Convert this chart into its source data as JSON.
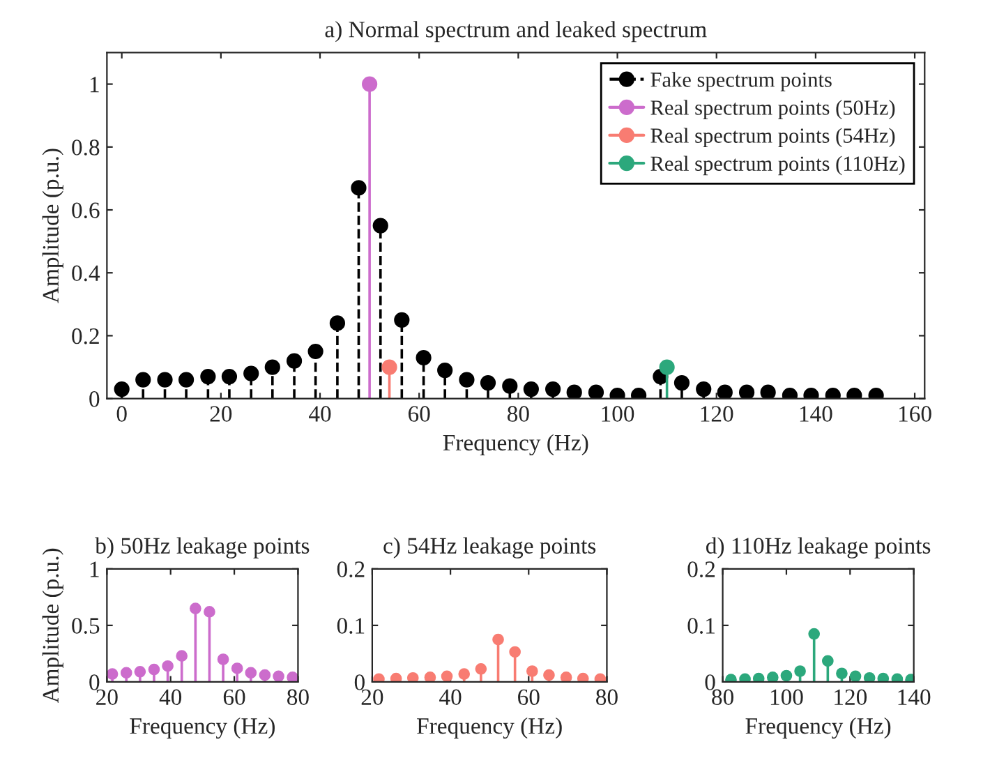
{
  "chart_data": [
    {
      "type": "lollipop",
      "title": "a) Normal spectrum and leaked spectrum",
      "xlabel": "Frequency (Hz)",
      "ylabel": "Amplitude (p.u.)",
      "xlim": [
        -3,
        162
      ],
      "ylim": [
        0,
        1.1
      ],
      "xticks": [
        0,
        20,
        40,
        60,
        80,
        100,
        120,
        140,
        160
      ],
      "yticks": [
        0,
        0.2,
        0.4,
        0.6,
        0.8,
        1
      ],
      "legend": "top right",
      "marker": "circle",
      "grid": false,
      "series": [
        {
          "name": "Fake spectrum points",
          "color": "#000000",
          "line_style": "dashed",
          "x": [
            0,
            4.3,
            8.7,
            13.0,
            17.4,
            21.7,
            26.1,
            30.4,
            34.8,
            39.1,
            43.5,
            47.8,
            52.2,
            56.5,
            60.9,
            65.2,
            69.6,
            73.9,
            78.3,
            82.6,
            87.0,
            91.3,
            95.7,
            100.0,
            104.3,
            108.7,
            113.0,
            117.4,
            121.7,
            126.1,
            130.4,
            134.8,
            139.1,
            143.5,
            147.8,
            152.2
          ],
          "values": [
            0.03,
            0.06,
            0.06,
            0.06,
            0.07,
            0.07,
            0.08,
            0.1,
            0.12,
            0.15,
            0.24,
            0.67,
            0.55,
            0.25,
            0.13,
            0.09,
            0.06,
            0.05,
            0.04,
            0.03,
            0.03,
            0.02,
            0.02,
            0.01,
            0.01,
            0.07,
            0.05,
            0.03,
            0.02,
            0.02,
            0.02,
            0.01,
            0.01,
            0.01,
            0.01,
            0.01
          ]
        },
        {
          "name": "Real spectrum points (50Hz)",
          "color": "#cc6ccc",
          "line_style": "solid",
          "x": [
            50
          ],
          "values": [
            1.0
          ]
        },
        {
          "name": "Real spectrum points (54Hz)",
          "color": "#f87c72",
          "line_style": "solid",
          "x": [
            54
          ],
          "values": [
            0.1
          ]
        },
        {
          "name": "Real spectrum points (110Hz)",
          "color": "#2ca87c",
          "line_style": "solid",
          "x": [
            110
          ],
          "values": [
            0.1
          ]
        }
      ]
    },
    {
      "type": "lollipop",
      "title": "b) 50Hz leakage points",
      "xlabel": "Frequency (Hz)",
      "ylabel": "Amplitude (p.u.)",
      "xlim": [
        20,
        80
      ],
      "ylim": [
        0,
        1
      ],
      "xticks": [
        20,
        40,
        60,
        80
      ],
      "yticks": [
        0,
        0.5,
        1
      ],
      "marker": "circle",
      "grid": false,
      "series": [
        {
          "color": "#cc6ccc",
          "line_style": "solid",
          "x": [
            21.7,
            26.1,
            30.4,
            34.8,
            39.1,
            43.5,
            47.8,
            52.2,
            56.5,
            60.9,
            65.2,
            69.6,
            73.9,
            78.3
          ],
          "values": [
            0.07,
            0.08,
            0.09,
            0.11,
            0.14,
            0.23,
            0.65,
            0.62,
            0.2,
            0.12,
            0.08,
            0.06,
            0.05,
            0.04
          ]
        }
      ]
    },
    {
      "type": "lollipop",
      "title": "c) 54Hz leakage points",
      "xlabel": "Frequency (Hz)",
      "xlim": [
        20,
        80
      ],
      "ylim": [
        0,
        0.2
      ],
      "xticks": [
        20,
        40,
        60,
        80
      ],
      "yticks": [
        0,
        0.1,
        0.2
      ],
      "marker": "circle",
      "grid": false,
      "series": [
        {
          "color": "#f87c72",
          "line_style": "solid",
          "x": [
            21.7,
            26.1,
            30.4,
            34.8,
            39.1,
            43.5,
            47.8,
            52.2,
            56.5,
            60.9,
            65.2,
            69.6,
            73.9,
            78.3
          ],
          "values": [
            0.005,
            0.006,
            0.007,
            0.008,
            0.01,
            0.014,
            0.023,
            0.075,
            0.053,
            0.019,
            0.012,
            0.008,
            0.006,
            0.005
          ]
        }
      ]
    },
    {
      "type": "lollipop",
      "title": "d) 110Hz leakage points",
      "xlabel": "Frequency (Hz)",
      "xlim": [
        80,
        140
      ],
      "ylim": [
        0,
        0.2
      ],
      "xticks": [
        80,
        100,
        120,
        140
      ],
      "yticks": [
        0,
        0.1,
        0.2
      ],
      "marker": "circle",
      "grid": false,
      "series": [
        {
          "color": "#2ca87c",
          "line_style": "solid",
          "x": [
            82.6,
            87.0,
            91.3,
            95.7,
            100.0,
            104.3,
            108.7,
            113.0,
            117.4,
            121.7,
            126.1,
            130.4,
            134.8,
            139.1
          ],
          "values": [
            0.004,
            0.005,
            0.006,
            0.008,
            0.011,
            0.019,
            0.085,
            0.037,
            0.015,
            0.01,
            0.007,
            0.006,
            0.005,
            0.004
          ]
        }
      ]
    }
  ]
}
